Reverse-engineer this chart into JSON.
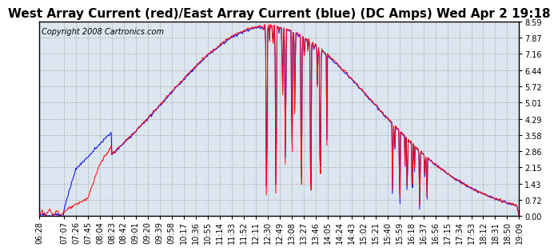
{
  "title": "West Array Current (red)/East Array Current (blue) (DC Amps) Wed Apr 2 19:18",
  "copyright": "Copyright 2008 Cartronics.com",
  "ymin": 0.0,
  "ymax": 8.59,
  "yticks": [
    0.0,
    0.72,
    1.43,
    2.15,
    2.86,
    3.58,
    4.29,
    5.01,
    5.72,
    6.44,
    7.16,
    7.87,
    8.59
  ],
  "xtick_labels": [
    "06:28",
    "07:07",
    "07:26",
    "07:45",
    "08:04",
    "08:23",
    "08:42",
    "09:01",
    "09:20",
    "09:39",
    "09:58",
    "10:17",
    "10:36",
    "10:55",
    "11:14",
    "11:33",
    "11:52",
    "12:11",
    "12:30",
    "12:49",
    "13:08",
    "13:27",
    "13:46",
    "14:05",
    "14:24",
    "14:43",
    "15:02",
    "15:21",
    "15:40",
    "15:59",
    "16:18",
    "16:37",
    "16:56",
    "17:15",
    "17:34",
    "17:53",
    "18:12",
    "18:31",
    "18:50",
    "19:09"
  ],
  "bg_color": "#ffffff",
  "plot_bg_color": "#dce6f0",
  "grid_color": "#aaaaaa",
  "red_color": "#ff0000",
  "blue_color": "#0000ff",
  "title_fontsize": 11,
  "tick_fontsize": 7,
  "copyright_fontsize": 7
}
